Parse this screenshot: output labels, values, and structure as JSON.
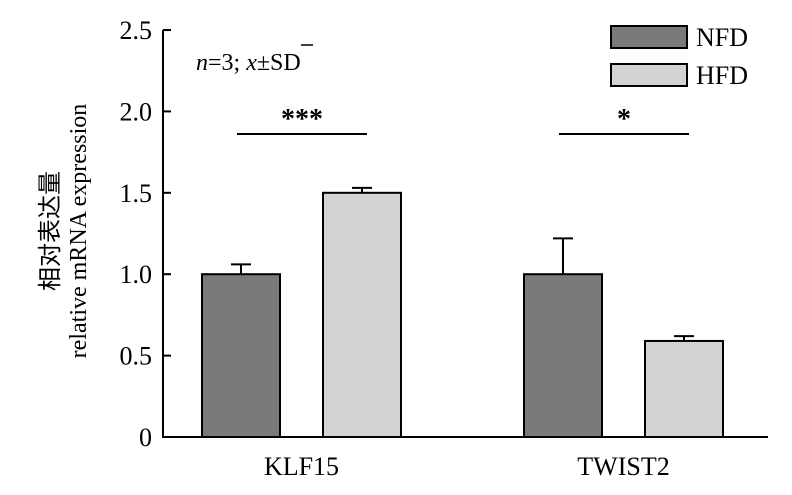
{
  "chart_data": {
    "type": "bar",
    "categories": [
      "KLF15",
      "TWIST2"
    ],
    "series": [
      {
        "name": "NFD",
        "values": [
          1.0,
          1.0
        ],
        "errors": [
          0.06,
          0.22
        ],
        "color": "#7a7a7a"
      },
      {
        "name": "HFD",
        "values": [
          1.5,
          0.59
        ],
        "errors": [
          0.03,
          0.03
        ],
        "color": "#d3d3d3"
      }
    ],
    "ylabel_cn": "相对表达量",
    "ylabel_en": "relative mRNA expression",
    "ylim": [
      0,
      2.5
    ],
    "yticks": [
      "0",
      "0.5",
      "1.0",
      "1.5",
      "2.0",
      "2.5"
    ],
    "ytick_values": [
      0,
      0.5,
      1.0,
      1.5,
      2.0,
      2.5
    ],
    "annotation": {
      "n_italic": "n",
      "n_rest": "=3; ",
      "xbar": "x",
      "rest": "±SD"
    },
    "significance": [
      "***",
      "*"
    ],
    "legend_position": "top-right",
    "grid": false
  }
}
